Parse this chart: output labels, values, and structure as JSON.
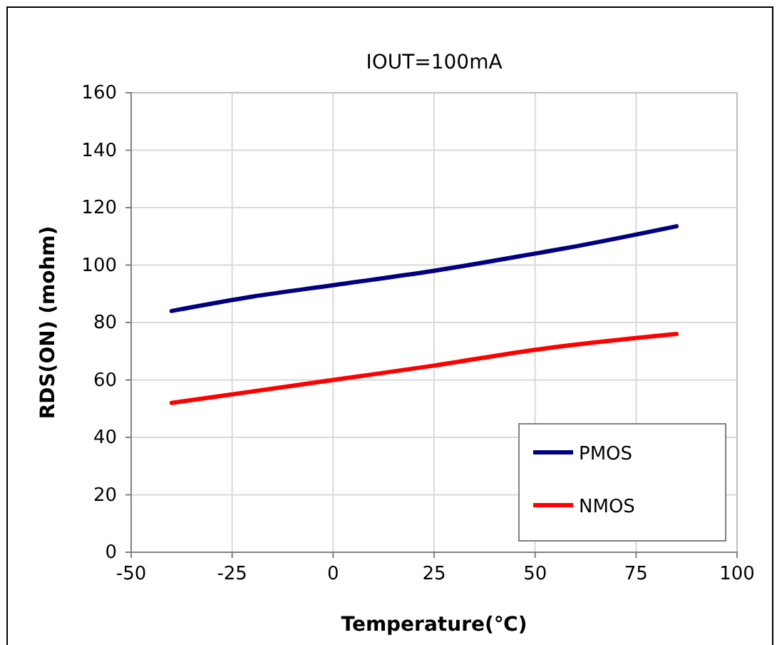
{
  "chart_data": {
    "type": "line",
    "title": "IOUT=100mA",
    "xlabel": "Temperature(℃)",
    "ylabel": "RDS(ON) (mohm)",
    "xlim": [
      -50,
      100
    ],
    "xticks": [
      -50,
      -25,
      0,
      25,
      50,
      75,
      100
    ],
    "ylim": [
      0,
      160
    ],
    "yticks": [
      0,
      20,
      40,
      60,
      80,
      100,
      120,
      140,
      160
    ],
    "grid": true,
    "legend": "bottom right",
    "marker": "none",
    "line_style": "solid",
    "series": [
      {
        "name": "PMOS",
        "color": "#000080",
        "x": [
          -40,
          -20,
          0,
          25,
          50,
          60,
          85
        ],
        "values": [
          84,
          89,
          93,
          98,
          104,
          106.5,
          113.5
        ]
      },
      {
        "name": "NMOS",
        "color": "#ff0000",
        "x": [
          -40,
          -20,
          0,
          25,
          50,
          85
        ],
        "values": [
          52,
          56,
          60,
          65,
          70.5,
          76
        ]
      }
    ]
  }
}
